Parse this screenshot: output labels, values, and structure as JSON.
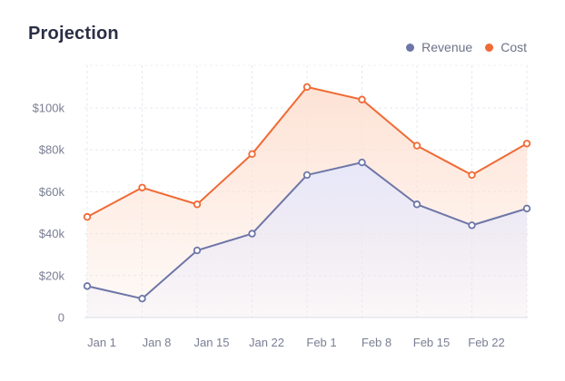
{
  "title": "Projection",
  "legend": [
    {
      "label": "Revenue",
      "color": "#6e76a8"
    },
    {
      "label": "Cost",
      "color": "#f06a35"
    }
  ],
  "chart_data": {
    "type": "area",
    "title": "Projection",
    "categories": [
      "Jan 1",
      "Jan 8",
      "Jan 15",
      "Jan 22",
      "Feb 1",
      "Feb 8",
      "Feb 15",
      "Feb 22",
      ""
    ],
    "x_tick_labels": [
      "Jan 1",
      "Jan 8",
      "Jan 15",
      "Jan 22",
      "Feb 1",
      "Feb 8",
      "Feb 15",
      "Feb 22"
    ],
    "y_tick_labels": [
      "0",
      "$20k",
      "$40k",
      "$60k",
      "$80k",
      "$100k"
    ],
    "y_ticks": [
      0,
      20000,
      40000,
      60000,
      80000,
      100000
    ],
    "ylim": [
      0,
      120000
    ],
    "grid": true,
    "legend_position": "top-right",
    "series": [
      {
        "name": "Revenue",
        "color": "#6e76a8",
        "fill": "#e6e8fb",
        "values": [
          15000,
          9000,
          32000,
          40000,
          68000,
          74000,
          54000,
          44000,
          52000
        ]
      },
      {
        "name": "Cost",
        "color": "#f06a35",
        "fill": "#fde1d3",
        "values": [
          48000,
          62000,
          54000,
          78000,
          110000,
          104000,
          82000,
          68000,
          83000
        ]
      }
    ]
  }
}
